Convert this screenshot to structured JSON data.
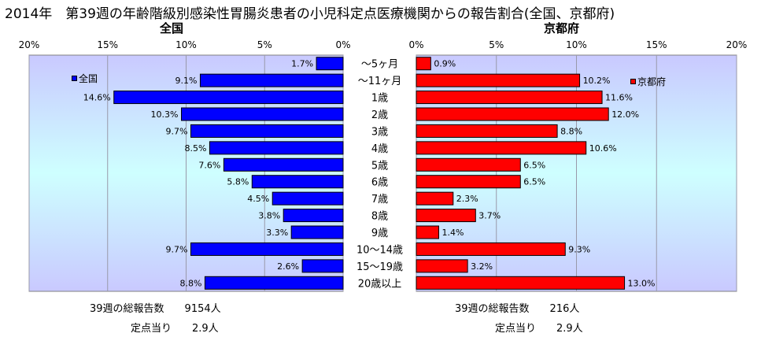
{
  "title": "2014年　第39週の年齢階級別感染性胃腸炎患者の小児科定点医療機関からの報告割合(全国、京都府)",
  "colors": {
    "national": "#0000FF",
    "kyoto": "#FF0000",
    "bar_outline": "#000000",
    "grid": "#9999AA"
  },
  "chart_data": {
    "type": "bar",
    "orientation": "horizontal",
    "categories": [
      "～5ヶ月",
      "～11ヶ月",
      "1歳",
      "2歳",
      "3歳",
      "4歳",
      "5歳",
      "6歳",
      "7歳",
      "8歳",
      "9歳",
      "10～14歳",
      "15～19歳",
      "20歳以上"
    ],
    "x_tick_labels": [
      "0%",
      "5%",
      "10%",
      "15%",
      "20%"
    ],
    "xlim": [
      0,
      20
    ],
    "grid": true,
    "series": [
      {
        "name": "全国",
        "panel_title": "全国",
        "direction": "left",
        "values": [
          1.7,
          9.1,
          14.6,
          10.3,
          9.7,
          8.5,
          7.6,
          5.8,
          4.5,
          3.8,
          3.3,
          9.7,
          2.6,
          8.8
        ],
        "labels": [
          "1.7%",
          "9.1%",
          "14.6%",
          "10.3%",
          "9.7%",
          "8.5%",
          "7.6%",
          "5.8%",
          "4.5%",
          "3.8%",
          "3.3%",
          "9.7%",
          "2.6%",
          "8.8%"
        ]
      },
      {
        "name": "京都府",
        "panel_title": "京都府",
        "direction": "right",
        "values": [
          0.9,
          10.2,
          11.6,
          12.0,
          8.8,
          10.6,
          6.5,
          6.5,
          2.3,
          3.7,
          1.4,
          9.3,
          3.2,
          13.0
        ],
        "labels": [
          "0.9%",
          "10.2%",
          "11.6%",
          "12.0%",
          "8.8%",
          "10.6%",
          "6.5%",
          "6.5%",
          "2.3%",
          "3.7%",
          "1.4%",
          "9.3%",
          "3.2%",
          "13.0%"
        ]
      }
    ]
  },
  "footer": {
    "national": {
      "total_label": "39週の総報告数　　9154人",
      "per_site_label": "定点当り　　2.9人"
    },
    "kyoto": {
      "total_label": "39週の総報告数　　216人",
      "per_site_label": "定点当り　　2.9人"
    }
  }
}
